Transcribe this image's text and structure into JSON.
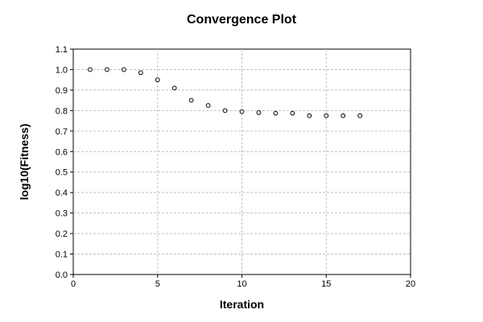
{
  "chart_data": {
    "type": "scatter",
    "title": "Convergence Plot",
    "xlabel": "Iteration",
    "ylabel": "log10(Fitness)",
    "xlim": [
      0,
      20
    ],
    "ylim": [
      0.0,
      1.1
    ],
    "x_ticks": [
      0,
      5,
      10,
      15,
      20
    ],
    "x_tick_labels": [
      "0",
      "5",
      "10",
      "15",
      "20"
    ],
    "y_ticks": [
      0.0,
      0.1,
      0.2,
      0.3,
      0.4,
      0.5,
      0.6,
      0.7,
      0.8,
      0.9,
      1.0,
      1.1
    ],
    "y_tick_labels": [
      "0.0",
      "0.1",
      "0.2",
      "0.3",
      "0.4",
      "0.5",
      "0.6",
      "0.7",
      "0.8",
      "0.9",
      "1.0",
      "1.1"
    ],
    "grid": true,
    "legend": "none",
    "marker": "open-circle",
    "colors": {
      "marker_stroke": "#000000",
      "marker_fill": "#ffffff",
      "grid": "#c0c0c0",
      "frame": "#000000"
    },
    "series": [
      {
        "x": [
          1,
          2,
          3,
          4,
          5,
          6,
          7,
          8,
          9,
          10,
          11,
          12,
          13,
          14,
          15,
          16,
          17
        ],
        "values": [
          1.0,
          1.0,
          1.0,
          0.985,
          0.95,
          0.91,
          0.85,
          0.825,
          0.8,
          0.795,
          0.79,
          0.787,
          0.787,
          0.775,
          0.775,
          0.775,
          0.775
        ]
      }
    ]
  }
}
